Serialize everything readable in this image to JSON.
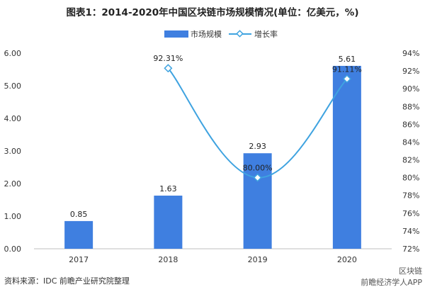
{
  "chart_data": {
    "type": "bar",
    "title": "图表1：2014-2020年中国区块链市场规模情况(单位：亿美元，%)",
    "categories": [
      "2017",
      "2018",
      "2019",
      "2020"
    ],
    "series": [
      {
        "name": "市场规模",
        "type": "bar",
        "axis": "left",
        "values": [
          0.85,
          1.63,
          2.93,
          5.61
        ],
        "labels": [
          "0.85",
          "1.63",
          "2.93",
          "5.61"
        ],
        "color": "#3F7FE0"
      },
      {
        "name": "增长率",
        "type": "line",
        "axis": "right",
        "values": [
          null,
          92.31,
          80.0,
          91.11
        ],
        "labels": [
          "",
          "92.31%",
          "80.00%",
          "91.11%"
        ],
        "color": "#3FA3E0"
      }
    ],
    "y_left": {
      "min": 0,
      "max": 6,
      "step": 1,
      "ticks": [
        "0.00",
        "1.00",
        "2.00",
        "3.00",
        "4.00",
        "5.00",
        "6.00"
      ]
    },
    "y_right": {
      "min": 72,
      "max": 94,
      "step": 2,
      "ticks": [
        "72%",
        "74%",
        "76%",
        "78%",
        "80%",
        "82%",
        "84%",
        "86%",
        "88%",
        "90%",
        "92%",
        "94%"
      ]
    },
    "legend": "top-center",
    "grid": false
  },
  "footer": {
    "source": "资料来源：IDC 前瞻产业研究院整理",
    "watermark": "前瞻经济学人APP",
    "brand": "区块链"
  }
}
